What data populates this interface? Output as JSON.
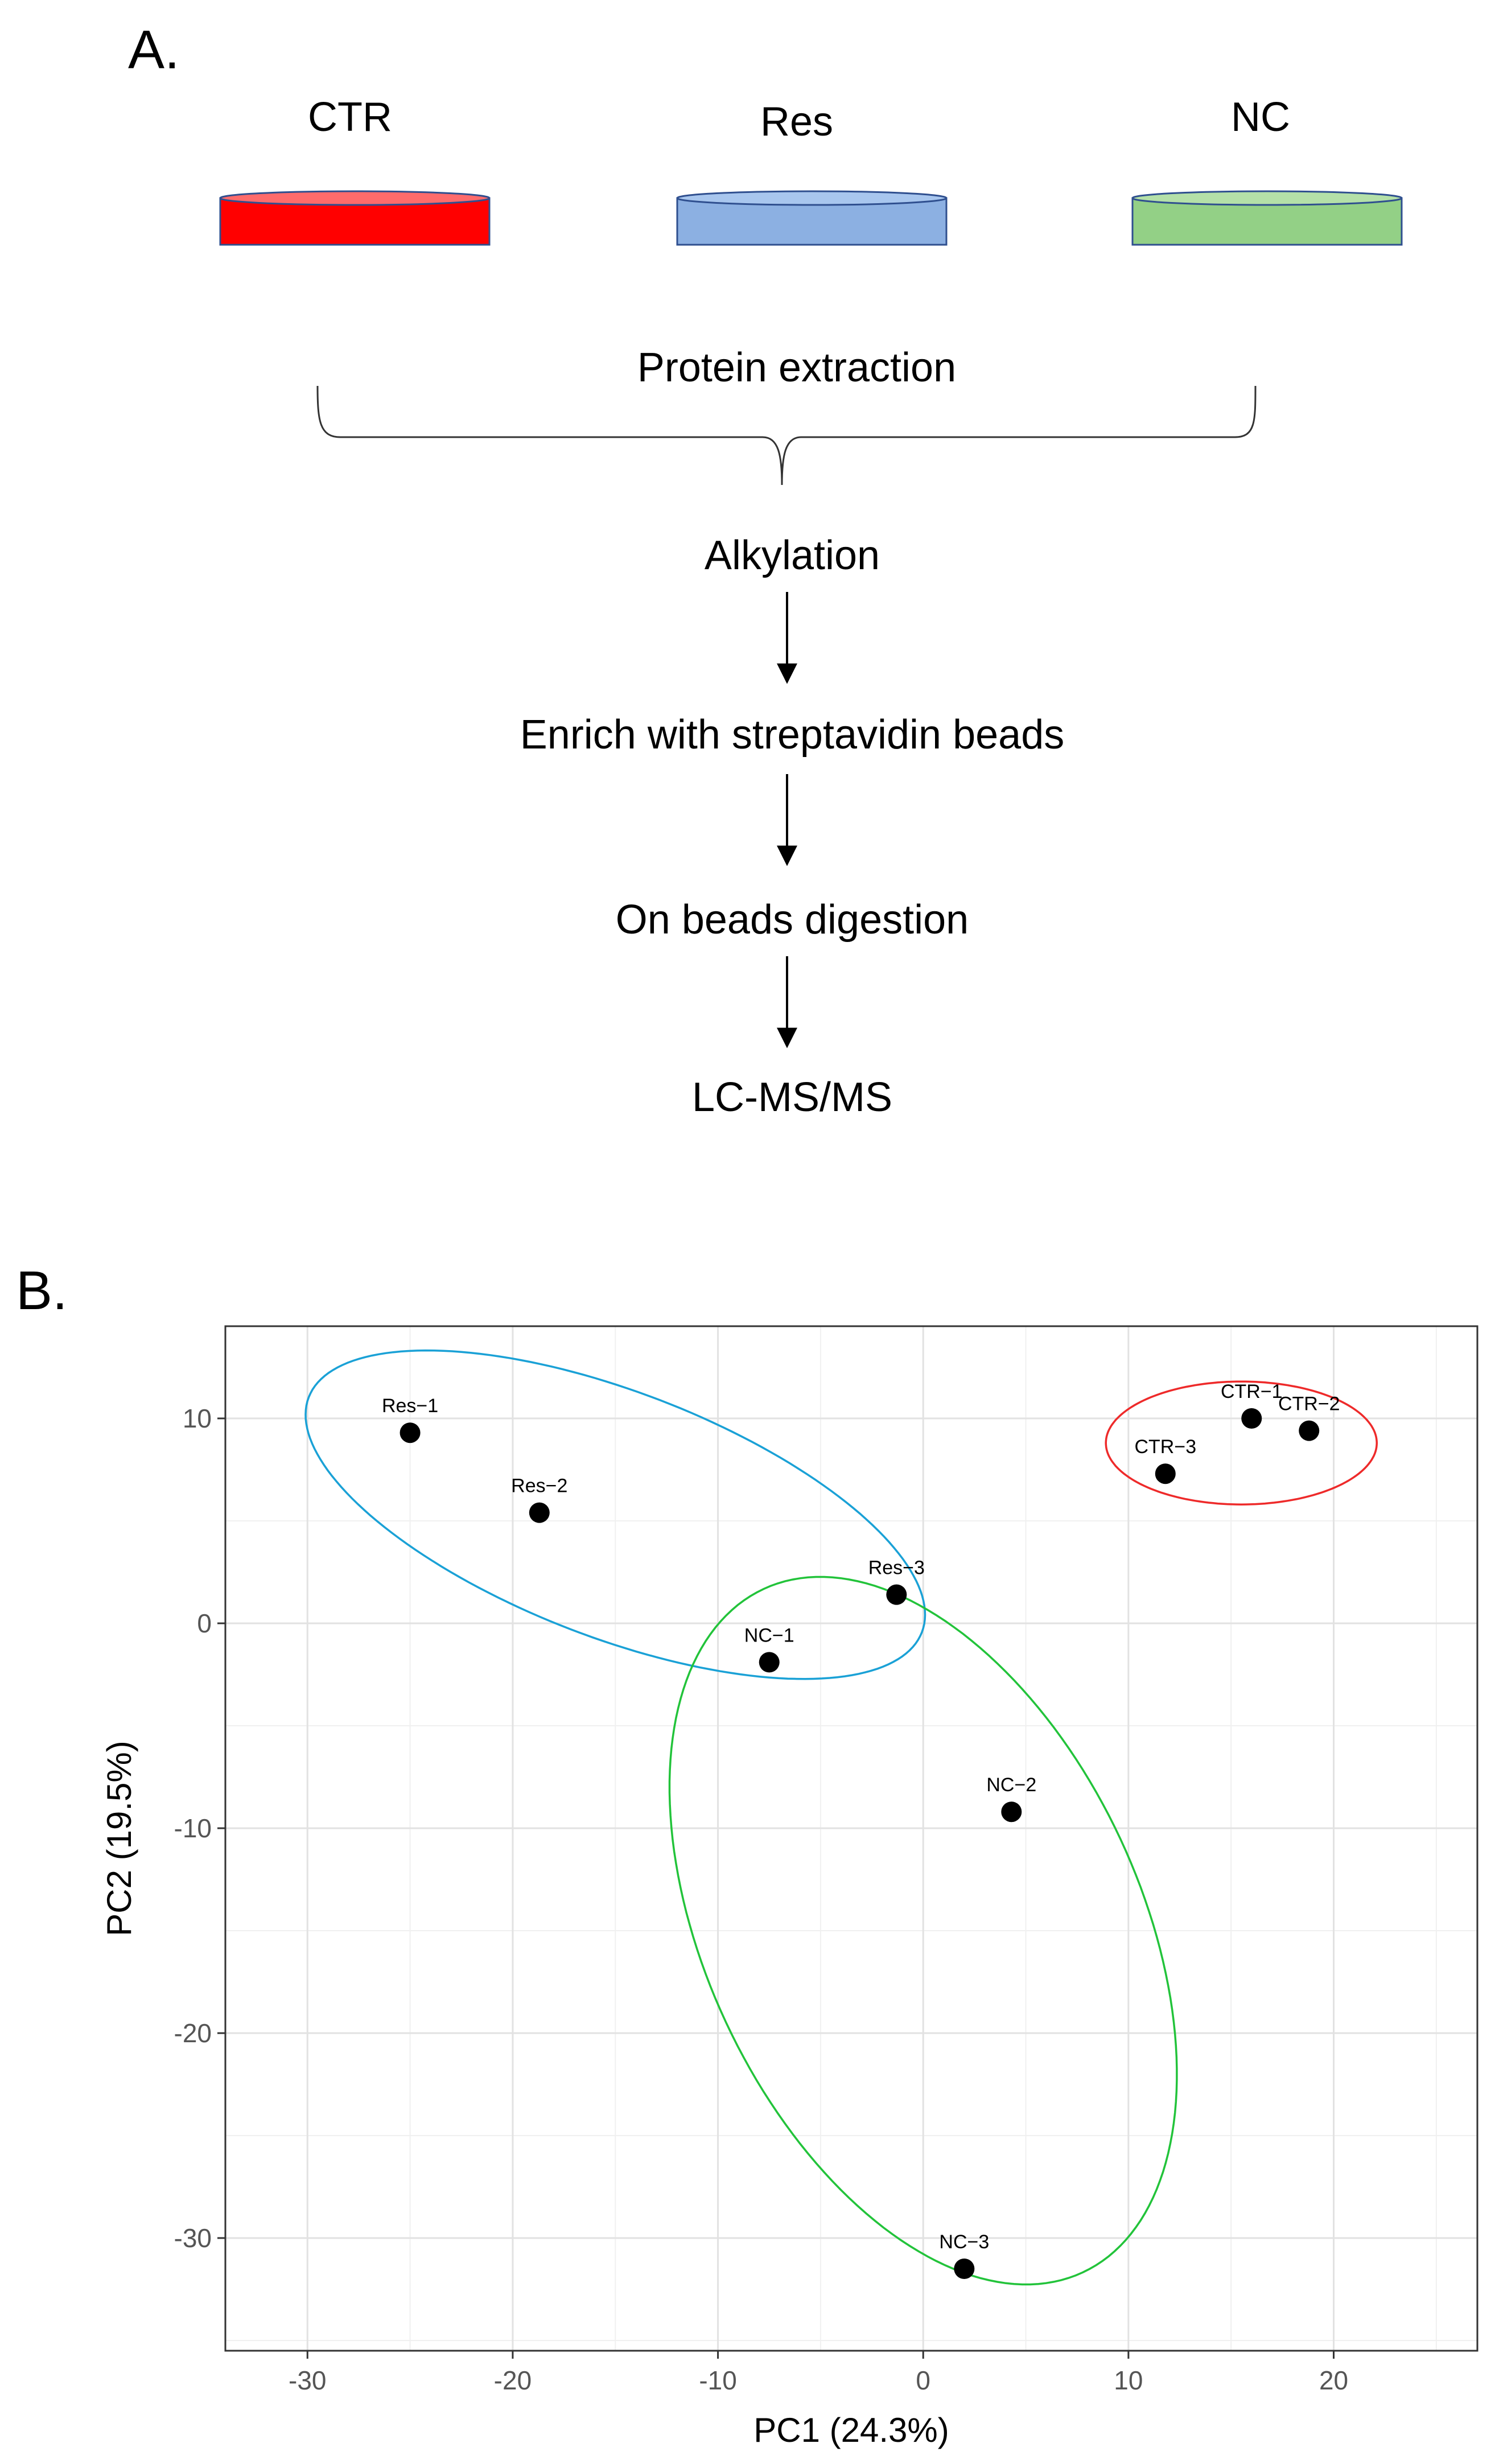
{
  "panel_a": {
    "letter": "A.",
    "dishes": [
      {
        "label": "CTR",
        "fill": "#ff0000",
        "top_fill": "#ff6b6b",
        "stroke": "#2f4f8f"
      },
      {
        "label": "Res",
        "fill": "#8cb0e2",
        "top_fill": "#a8c6ee",
        "stroke": "#2f4f8f"
      },
      {
        "label": "NC",
        "fill": "#93d086",
        "top_fill": "#b4e0a8",
        "stroke": "#2f4f8f"
      }
    ],
    "steps": [
      "Protein extraction",
      "Alkylation",
      "Enrich with streptavidin beads",
      "On beads digestion",
      "LC-MS/MS"
    ]
  },
  "panel_b": {
    "letter": "B."
  },
  "chart_data": {
    "type": "scatter",
    "xlabel": "PC1 (24.3%)",
    "ylabel": "PC2 (19.5%)",
    "xlim": [
      -34,
      27
    ],
    "ylim": [
      -35.5,
      14.5
    ],
    "xticks": [
      -30,
      -20,
      -10,
      0,
      10,
      20
    ],
    "yticks": [
      -30,
      -20,
      -10,
      0,
      10
    ],
    "xtick_labels": [
      "-30",
      "-20",
      "-10",
      "0",
      "10",
      "20"
    ],
    "ytick_labels": [
      "-30",
      "-20",
      "-10",
      "0",
      "10"
    ],
    "grid": true,
    "points": [
      {
        "label": "Res−1",
        "x": -25.0,
        "y": 9.3
      },
      {
        "label": "Res−2",
        "x": -18.7,
        "y": 5.4
      },
      {
        "label": "Res−3",
        "x": -1.3,
        "y": 1.4
      },
      {
        "label": "NC−1",
        "x": -7.5,
        "y": -1.9
      },
      {
        "label": "NC−2",
        "x": 4.3,
        "y": -9.2
      },
      {
        "label": "NC−3",
        "x": 2.0,
        "y": -31.5
      },
      {
        "label": "CTR−1",
        "x": 16.0,
        "y": 10.0
      },
      {
        "label": "CTR−2",
        "x": 18.8,
        "y": 9.4
      },
      {
        "label": "CTR−3",
        "x": 11.8,
        "y": 7.3
      }
    ],
    "ellipses": [
      {
        "color": "#1aa1d6",
        "cx": -15.0,
        "cy": 5.3,
        "rx": 16.0,
        "ry": 6.0,
        "angle": -21
      },
      {
        "color": "#22c33a",
        "cx": 0.0,
        "cy": -15.0,
        "rx": 18.4,
        "ry": 10.6,
        "angle": -65
      },
      {
        "color": "#ee2a2a",
        "cx": 15.5,
        "cy": 8.8,
        "rx": 6.6,
        "ry": 3.0,
        "angle": 0
      }
    ]
  }
}
